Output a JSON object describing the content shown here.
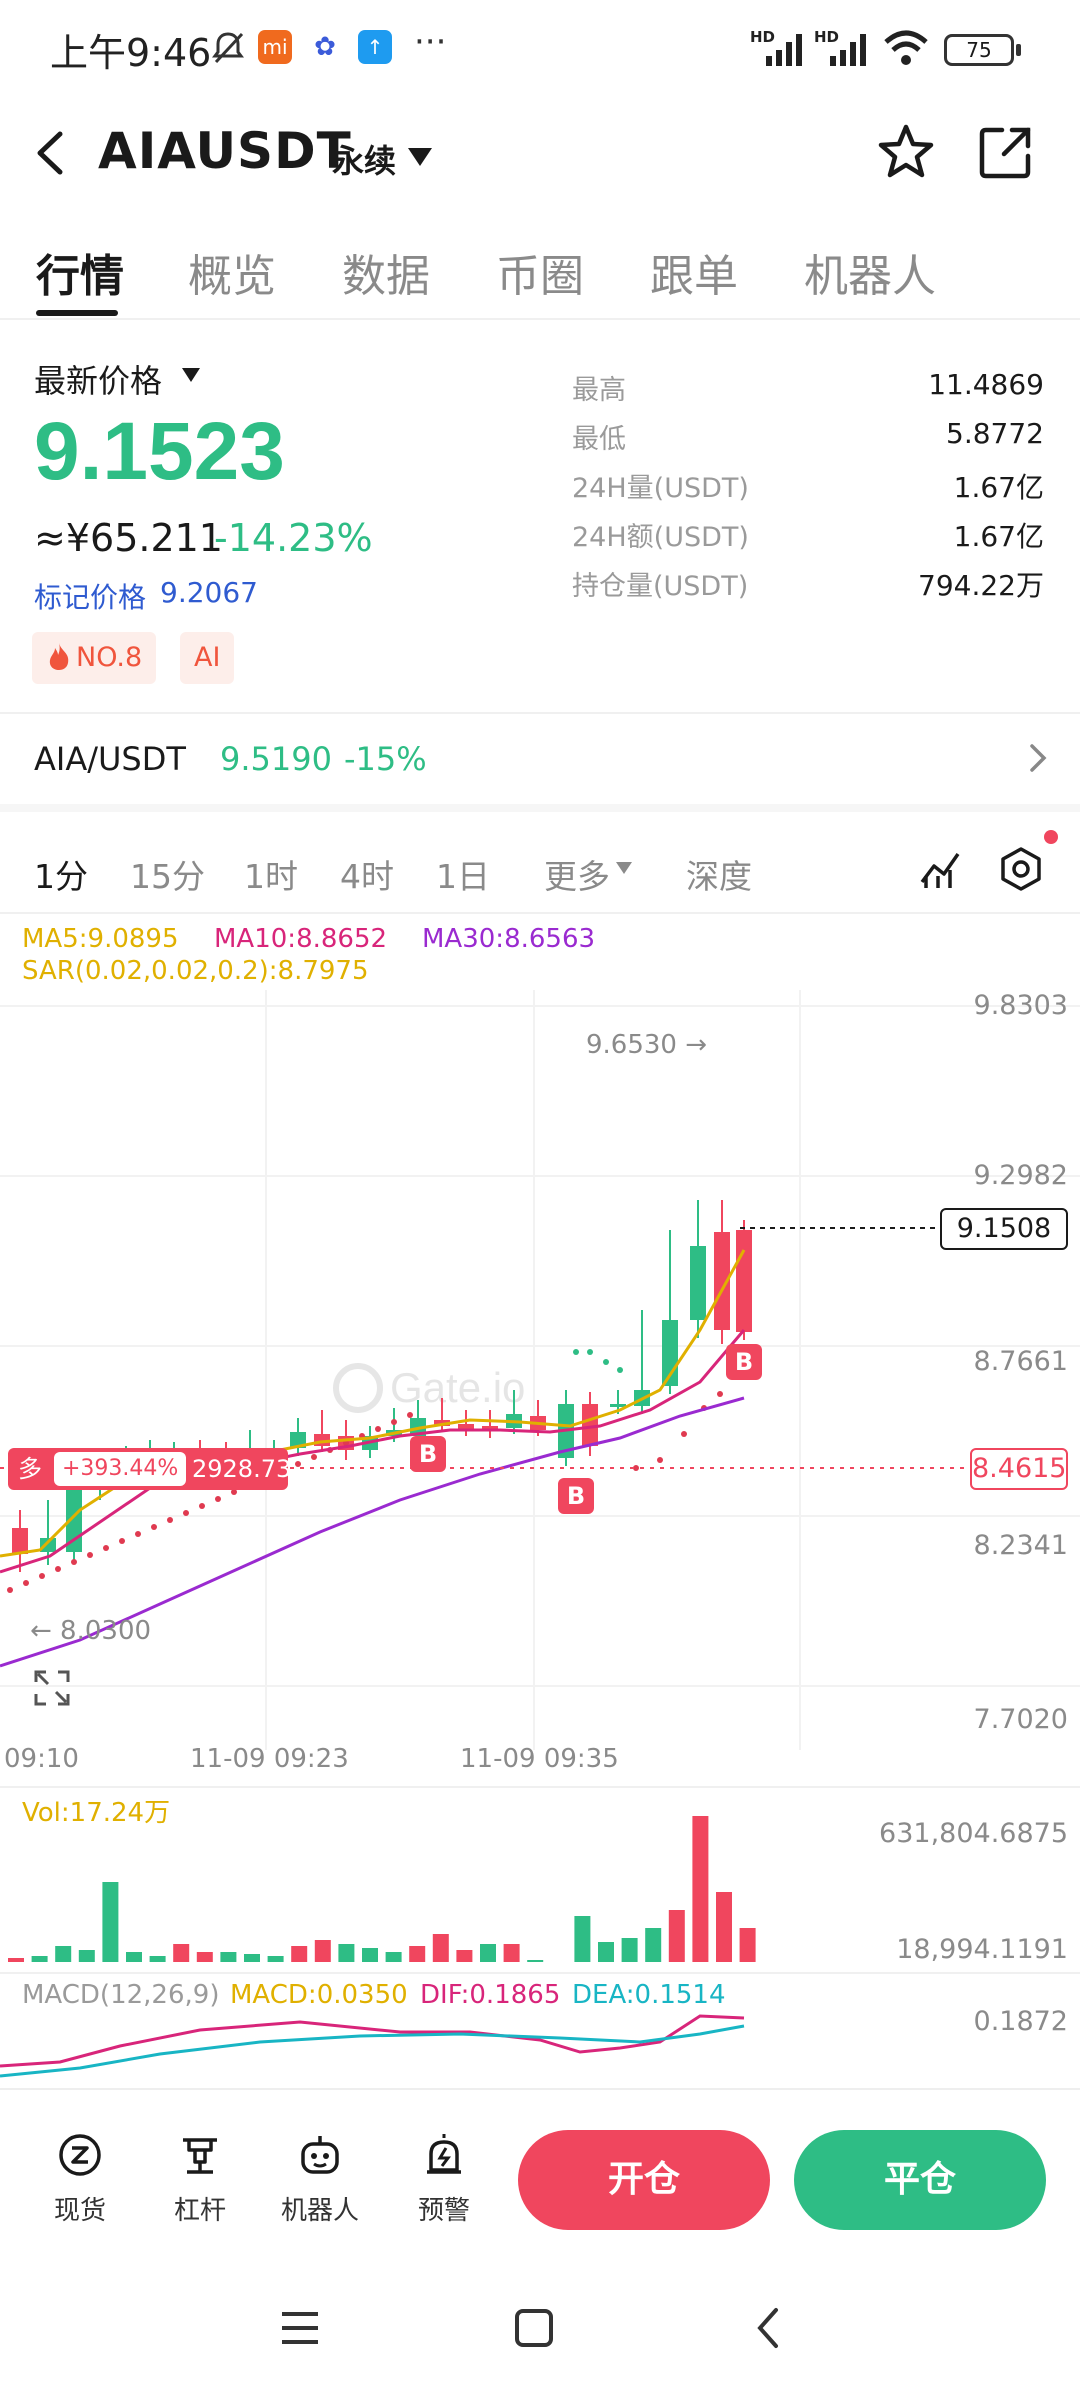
{
  "status_bar": {
    "time": "上午9:46",
    "battery": "75",
    "signal1": "HD",
    "signal2": "HD",
    "more": "···"
  },
  "header": {
    "title": "AIAUSDT",
    "subtitle": "永续",
    "icons": [
      "back-icon",
      "dropdown-icon",
      "star-icon",
      "share-icon"
    ]
  },
  "tabs": [
    "行情",
    "概览",
    "数据",
    "币圈",
    "跟单",
    "机器人"
  ],
  "price": {
    "latest_label": "最新价格",
    "last_price": "9.1523",
    "cny": "≈¥65.211",
    "change": "-14.23%",
    "mark_label": "标记价格",
    "mark_price": "9.2067",
    "tag_rank": "NO.8",
    "tag_ai": "AI"
  },
  "stats": [
    {
      "label": "最高",
      "value": "11.4869"
    },
    {
      "label": "最低",
      "value": "5.8772"
    },
    {
      "label": "24H量(USDT)",
      "value": "1.67亿"
    },
    {
      "label": "24H额(USDT)",
      "value": "1.67亿"
    },
    {
      "label": "持仓量(USDT)",
      "value": "794.22万"
    }
  ],
  "spot": {
    "pair": "AIA/USDT",
    "price": "9.5190",
    "change": "-15%"
  },
  "timeframes": [
    "1分",
    "15分",
    "1时",
    "4时",
    "1日",
    "更多",
    "深度"
  ],
  "indicators": {
    "ma5": "MA5:9.0895",
    "ma10": "MA10:8.8652",
    "ma30": "MA30:8.6563",
    "sar": "SAR(0.02,0.02,0.2):8.7975"
  },
  "chart": {
    "y_labels": [
      "9.8303",
      "9.2982",
      "8.7661",
      "8.2341",
      "7.7020"
    ],
    "x_labels": [
      "09:10",
      "11-09 09:23",
      "11-09 09:35"
    ],
    "high_label": "9.6530 →",
    "low_label": "← 8.0300",
    "last_price_tag": "9.1508",
    "position_side": "多",
    "position_pnl": "+393.44%",
    "position_value": "2928.73",
    "entry_price_tag": "8.4615",
    "buy_marker": "B",
    "colors": {
      "up": "#2ebd85",
      "down": "#f0465e",
      "ma5": "#e0b000",
      "ma10": "#d8257a",
      "ma30": "#9a2ad0",
      "sar": "#e03a50"
    }
  },
  "volume": {
    "label": "Vol:17.24万",
    "max": "631,804.6875",
    "min": "18,994.1191"
  },
  "macd": {
    "label": "MACD(12,26,9)",
    "macd": "MACD:0.0350",
    "dif": "DIF:0.1865",
    "dea": "DEA:0.1514",
    "axis": "0.1872"
  },
  "bottom": {
    "items": [
      "现货",
      "杠杆",
      "机器人",
      "预警"
    ],
    "open": "开仓",
    "close": "平仓"
  }
}
